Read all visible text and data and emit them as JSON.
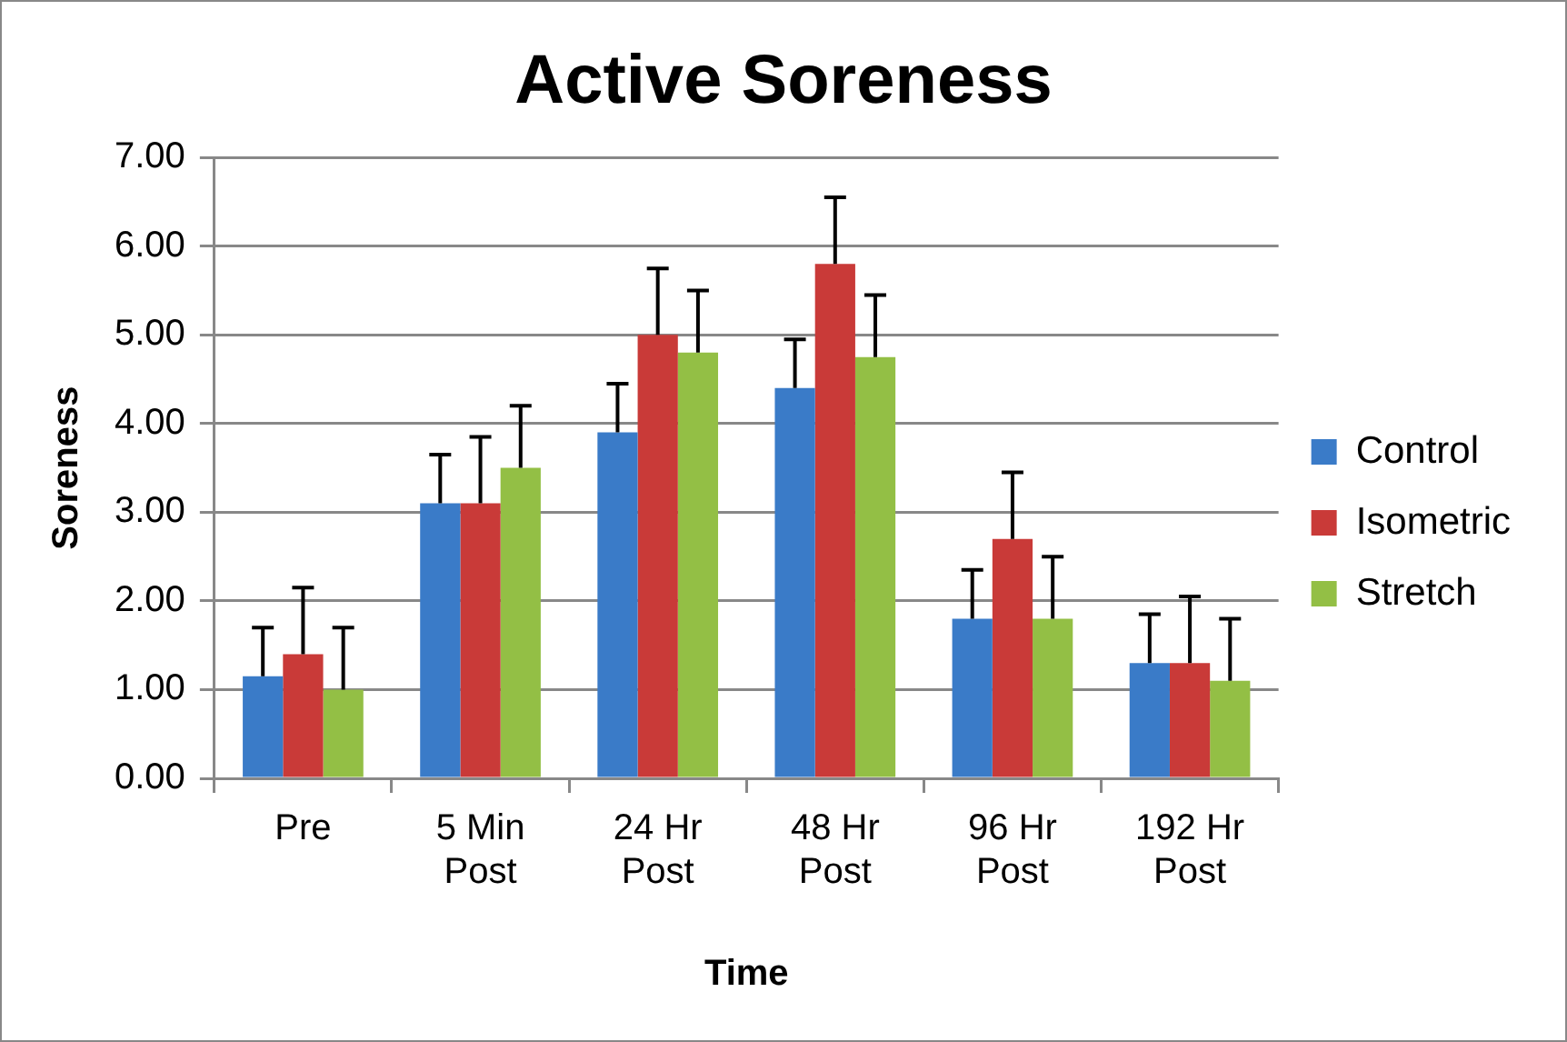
{
  "chart_data": {
    "type": "bar",
    "title": "Active Soreness",
    "xlabel": "Time",
    "ylabel": "Soreness",
    "categories": [
      "Pre",
      "5 Min Post",
      "24 Hr Post",
      "48 Hr Post",
      "96 Hr Post",
      "192 Hr Post"
    ],
    "series": [
      {
        "name": "Control",
        "color": "#3a7bc8",
        "values": [
          1.15,
          3.1,
          3.9,
          4.4,
          1.8,
          1.3
        ],
        "errors": [
          [
            1.15,
            1.7
          ],
          [
            3.1,
            3.65
          ],
          [
            3.9,
            4.45
          ],
          [
            4.4,
            4.95
          ],
          [
            1.8,
            2.35
          ],
          [
            1.3,
            1.85
          ]
        ]
      },
      {
        "name": "Isometric",
        "color": "#c93a38",
        "values": [
          1.4,
          3.1,
          5.0,
          5.8,
          2.7,
          1.3
        ],
        "errors": [
          [
            1.4,
            2.15
          ],
          [
            3.1,
            3.85
          ],
          [
            5.0,
            5.75
          ],
          [
            5.8,
            6.55
          ],
          [
            2.7,
            3.45
          ],
          [
            1.3,
            2.05
          ]
        ]
      },
      {
        "name": "Stretch",
        "color": "#93bf45",
        "values": [
          1.0,
          3.5,
          4.8,
          4.75,
          1.8,
          1.1
        ],
        "errors": [
          [
            1.0,
            1.7
          ],
          [
            3.5,
            4.2
          ],
          [
            4.8,
            5.5
          ],
          [
            4.75,
            5.45
          ],
          [
            1.8,
            2.5
          ],
          [
            1.1,
            1.8
          ]
        ]
      }
    ],
    "ylim": [
      0,
      7
    ],
    "yticks": [
      {
        "value": 0,
        "label": "0.00"
      },
      {
        "value": 1,
        "label": "1.00"
      },
      {
        "value": 2,
        "label": "2.00"
      },
      {
        "value": 3,
        "label": "3.00"
      },
      {
        "value": 4,
        "label": "4.00"
      },
      {
        "value": 5,
        "label": "5.00"
      },
      {
        "value": 6,
        "label": "6.00"
      },
      {
        "value": 7,
        "label": "7.00"
      }
    ],
    "grid": "y",
    "legend": "right"
  }
}
